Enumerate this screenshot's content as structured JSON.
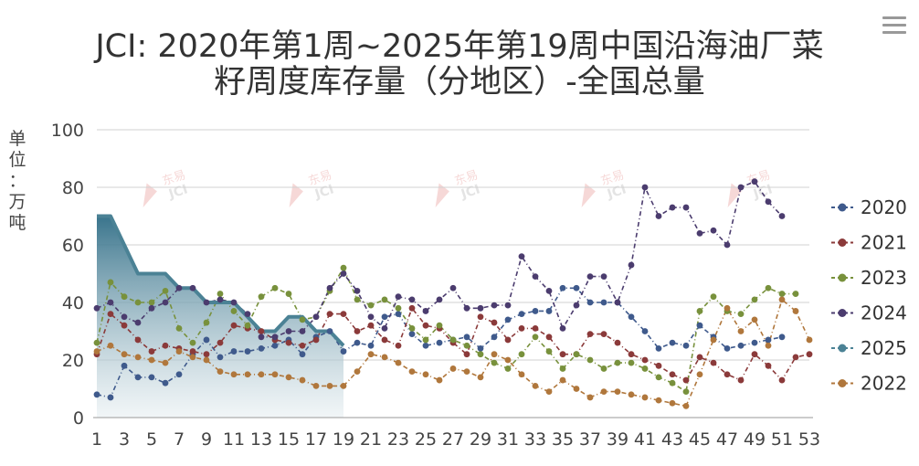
{
  "menu": {
    "icon": "hamburger-menu-icon"
  },
  "watermark": {
    "text": "东易\nJCI"
  },
  "chart_data": {
    "type": "line",
    "title": [
      "JCI: 2020年第1周~2025年第19周中国沿海油厂菜",
      "籽周度库存量（分地区）-全国总量"
    ],
    "ylabel": "单位：万吨",
    "ylim": [
      0,
      100
    ],
    "yticks": [
      0,
      20,
      40,
      60,
      80,
      100
    ],
    "xlim": [
      1,
      53
    ],
    "xticks": [
      1,
      3,
      5,
      7,
      9,
      11,
      13,
      15,
      17,
      19,
      21,
      23,
      25,
      27,
      29,
      31,
      33,
      35,
      37,
      39,
      41,
      43,
      45,
      47,
      49,
      51,
      53
    ],
    "grid": true,
    "legend_position": "right",
    "series": [
      {
        "name": "2020",
        "color": "#3f5a8c",
        "values": [
          8,
          7,
          18,
          14,
          14,
          12,
          15,
          22,
          27,
          21,
          23,
          23,
          24,
          25,
          27,
          22,
          28,
          30,
          23,
          26,
          25,
          35,
          36,
          29,
          25,
          26,
          27,
          28,
          24,
          28,
          34,
          36,
          37,
          37,
          45,
          45,
          40,
          40,
          40,
          35,
          30,
          24,
          26,
          25,
          32,
          28,
          24,
          25,
          26,
          27,
          28,
          null,
          null
        ]
      },
      {
        "name": "2021",
        "color": "#8b3a3a",
        "values": [
          22,
          36,
          32,
          27,
          23,
          25,
          24,
          23,
          22,
          26,
          32,
          31,
          30,
          27,
          26,
          25,
          27,
          36,
          36,
          30,
          32,
          27,
          25,
          38,
          32,
          31,
          26,
          22,
          35,
          33,
          27,
          31,
          31,
          28,
          22,
          22,
          29,
          29,
          26,
          22,
          20,
          18,
          15,
          13,
          21,
          19,
          15,
          13,
          22,
          18,
          13,
          21,
          22
        ]
      },
      {
        "name": "2023",
        "color": "#78913c",
        "values": [
          26,
          47,
          42,
          40,
          40,
          44,
          31,
          26,
          33,
          43,
          37,
          32,
          42,
          45,
          43,
          34,
          35,
          44,
          52,
          41,
          39,
          41,
          38,
          31,
          27,
          32,
          27,
          25,
          22,
          19,
          17,
          22,
          28,
          23,
          17,
          22,
          20,
          17,
          19,
          19,
          17,
          14,
          12,
          9,
          37,
          42,
          37,
          36,
          41,
          45,
          43,
          43,
          null
        ]
      },
      {
        "name": "2024",
        "color": "#4b3c6e",
        "values": [
          38,
          40,
          35,
          33,
          38,
          40,
          45,
          45,
          40,
          41,
          40,
          36,
          28,
          28,
          30,
          30,
          35,
          45,
          50,
          44,
          35,
          31,
          42,
          41,
          37,
          41,
          45,
          38,
          38,
          39,
          39,
          56,
          49,
          44,
          31,
          39,
          49,
          49,
          40,
          53,
          80,
          70,
          73,
          73,
          64,
          65,
          60,
          80,
          82,
          75,
          70,
          null,
          null
        ]
      },
      {
        "name": "2025",
        "color": "#4b8295",
        "area": true,
        "values": [
          70,
          70,
          60,
          50,
          50,
          50,
          45,
          45,
          40,
          40,
          40,
          35,
          30,
          30,
          35,
          35,
          30,
          30,
          25
        ]
      },
      {
        "name": "2022",
        "color": "#b0773c",
        "values": [
          23,
          25,
          22,
          21,
          20,
          19,
          23,
          21,
          20,
          16,
          15,
          15,
          15,
          15,
          14,
          13,
          11,
          11,
          11,
          16,
          22,
          21,
          19,
          16,
          15,
          13,
          17,
          16,
          14,
          22,
          20,
          15,
          11,
          9,
          13,
          10,
          7,
          9,
          9,
          8,
          7,
          6,
          5,
          4,
          15,
          27,
          38,
          30,
          34,
          25,
          41,
          37,
          27
        ]
      }
    ]
  }
}
